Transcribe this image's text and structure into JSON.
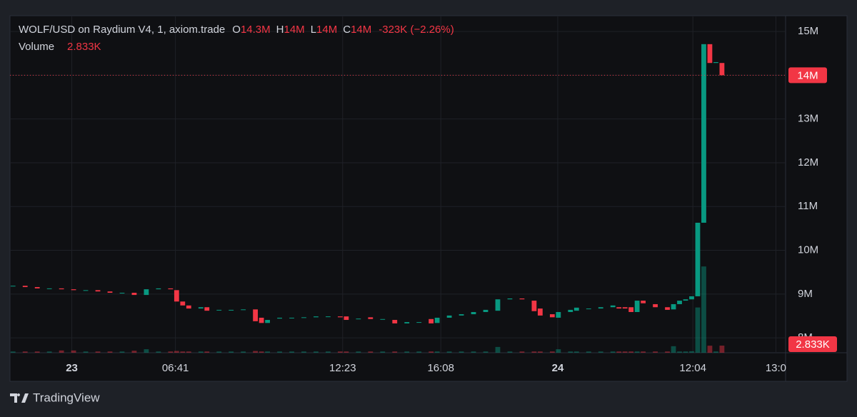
{
  "chart_data": {
    "type": "candlestick",
    "title": "WOLF/USD on Raydium V4, 1, axiom.trade",
    "ohlc": [
      {
        "key": "O",
        "value": "14.3M"
      },
      {
        "key": "H",
        "value": "14M"
      },
      {
        "key": "L",
        "value": "14M"
      },
      {
        "key": "C",
        "value": "14M"
      }
    ],
    "change": "-323K (−2.26%)",
    "volume_title": "Volume",
    "volume_label": "2.833K",
    "last_price_label": "14M",
    "brand": "TradingView",
    "up_color": "#089981",
    "down_color": "#f23645",
    "grid": true,
    "x": [
      0,
      2,
      4,
      6,
      8,
      10,
      12,
      14,
      16,
      18,
      20,
      22,
      24,
      26,
      27,
      28,
      29,
      31,
      32,
      34,
      36,
      38,
      40,
      41,
      42,
      44,
      46,
      48,
      50,
      52,
      54,
      55,
      57,
      59,
      61,
      63,
      65,
      67,
      69,
      70,
      72,
      74,
      76,
      78,
      80,
      82,
      84,
      86,
      87,
      89,
      90,
      92,
      93,
      95,
      97,
      99,
      100,
      101,
      102,
      103,
      104,
      106,
      108,
      109,
      110,
      111,
      112,
      113,
      114,
      115,
      116,
      117
    ],
    "open": [
      9190000,
      9190000,
      9160000,
      9130000,
      9130000,
      9110000,
      9090000,
      9090000,
      9060000,
      9030000,
      9030000,
      8980000,
      9110000,
      9130000,
      9090000,
      8830000,
      8740000,
      8670000,
      8700000,
      8640000,
      8640000,
      8640000,
      8650000,
      8460000,
      8340000,
      8440000,
      8460000,
      8460000,
      8470000,
      8490000,
      8490000,
      8490000,
      8430000,
      8470000,
      8430000,
      8410000,
      8330000,
      8360000,
      8430000,
      8340000,
      8460000,
      8510000,
      8540000,
      8590000,
      8620000,
      8880000,
      8900000,
      8850000,
      8670000,
      8540000,
      8460000,
      8590000,
      8620000,
      8670000,
      8670000,
      8700000,
      8700000,
      8700000,
      8700000,
      8590000,
      8850000,
      8770000,
      8700000,
      8650000,
      8770000,
      8850000,
      8880000,
      8950000,
      10630000,
      14710000,
      14280000,
      14280000
    ],
    "close": [
      9190000,
      9160000,
      9130000,
      9130000,
      9110000,
      9090000,
      9090000,
      9060000,
      9030000,
      9030000,
      8980000,
      9110000,
      9130000,
      9110000,
      8830000,
      8740000,
      8670000,
      8700000,
      8620000,
      8640000,
      8640000,
      8650000,
      8380000,
      8340000,
      8410000,
      8460000,
      8460000,
      8470000,
      8490000,
      8490000,
      8470000,
      8410000,
      8440000,
      8430000,
      8430000,
      8330000,
      8360000,
      8360000,
      8330000,
      8460000,
      8510000,
      8540000,
      8590000,
      8640000,
      8880000,
      8900000,
      8880000,
      8610000,
      8510000,
      8470000,
      8590000,
      8640000,
      8690000,
      8670000,
      8700000,
      8740000,
      8670000,
      8670000,
      8590000,
      8850000,
      8790000,
      8700000,
      8640000,
      8770000,
      8850000,
      8880000,
      8950000,
      10630000,
      14710000,
      14280000,
      14300000,
      14000000
    ],
    "volume": [
      500,
      500,
      500,
      500,
      900,
      900,
      500,
      500,
      500,
      500,
      800,
      1400,
      500,
      500,
      700,
      500,
      500,
      500,
      500,
      500,
      500,
      500,
      700,
      500,
      500,
      500,
      500,
      500,
      500,
      500,
      500,
      500,
      500,
      500,
      500,
      500,
      500,
      500,
      500,
      500,
      500,
      500,
      500,
      500,
      2300,
      500,
      500,
      500,
      500,
      500,
      1400,
      500,
      500,
      500,
      500,
      500,
      500,
      500,
      500,
      500,
      500,
      500,
      500,
      2600,
      500,
      500,
      600,
      18000,
      34300,
      2800,
      500,
      2833
    ],
    "xlim": [
      -0.5,
      127.5
    ],
    "xticks": [
      {
        "value": 9.7,
        "label": "23"
      },
      {
        "value": 26.8,
        "label": "06:41"
      },
      {
        "value": 54.4,
        "label": "12:23"
      },
      {
        "value": 70.6,
        "label": "16:08"
      },
      {
        "value": 89.9,
        "label": "24"
      },
      {
        "value": 112.2,
        "label": "12:04"
      },
      {
        "value": 125.9,
        "label": "13:0"
      }
    ],
    "ylim": [
      7660000,
      15360000
    ],
    "yticks": [
      {
        "value": 8000000,
        "label": "8M"
      },
      {
        "value": 9000000,
        "label": "9M"
      },
      {
        "value": 10000000,
        "label": "10M"
      },
      {
        "value": 11000000,
        "label": "11M"
      },
      {
        "value": 12000000,
        "label": "12M"
      },
      {
        "value": 13000000,
        "label": "13M"
      },
      {
        "value": 14000000,
        "label": "14M"
      },
      {
        "value": 15000000,
        "label": "15M"
      }
    ],
    "y2lim": [
      0,
      134000
    ]
  }
}
